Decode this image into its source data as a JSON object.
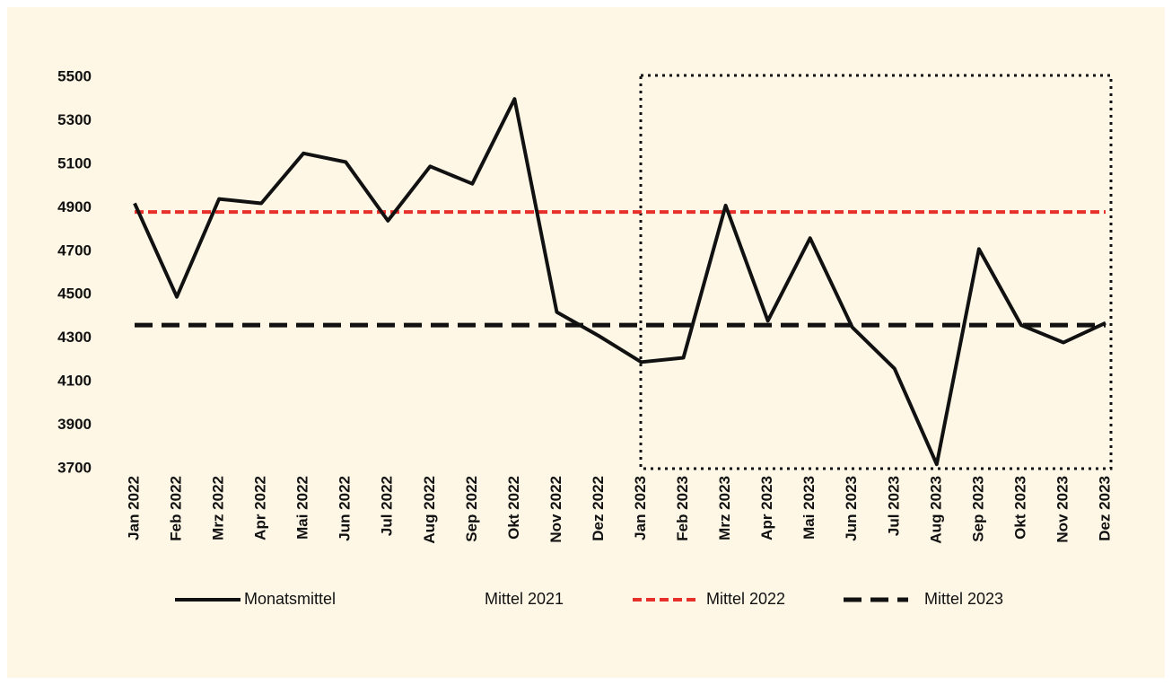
{
  "chart_data": {
    "type": "line",
    "categories": [
      "Jan 2022",
      "Feb 2022",
      "Mrz 2022",
      "Apr 2022",
      "Mai 2022",
      "Jun 2022",
      "Jul 2022",
      "Aug 2022",
      "Sep 2022",
      "Okt 2022",
      "Nov 2022",
      "Dez 2022",
      "Jan 2023",
      "Feb 2023",
      "Mrz 2023",
      "Apr 2023",
      "Mai 2023",
      "Jun 2023",
      "Jul 2023",
      "Aug 2023",
      "Sep 2023",
      "Okt 2023",
      "Nov 2023",
      "Dez 2023"
    ],
    "series": [
      {
        "name": "Monatsmittel",
        "color": "#111111",
        "values": [
          4920,
          4490,
          4940,
          4920,
          5150,
          5110,
          4840,
          5090,
          5010,
          5400,
          4420,
          4310,
          4190,
          4210,
          4910,
          4380,
          4760,
          4350,
          4160,
          3720,
          4710,
          4360,
          4280,
          4370
        ]
      }
    ],
    "reference_lines": [
      {
        "name": "Mittel 2021"
      },
      {
        "name": "Mittel 2022",
        "value": 4880,
        "color": "#e8302a"
      },
      {
        "name": "Mittel 2023",
        "value": 4360,
        "color": "#111111"
      }
    ],
    "ylim": [
      3700,
      5500
    ],
    "yticks": [
      3700,
      3900,
      4100,
      4300,
      4500,
      4700,
      4900,
      5100,
      5300,
      5500
    ],
    "grid": false
  }
}
